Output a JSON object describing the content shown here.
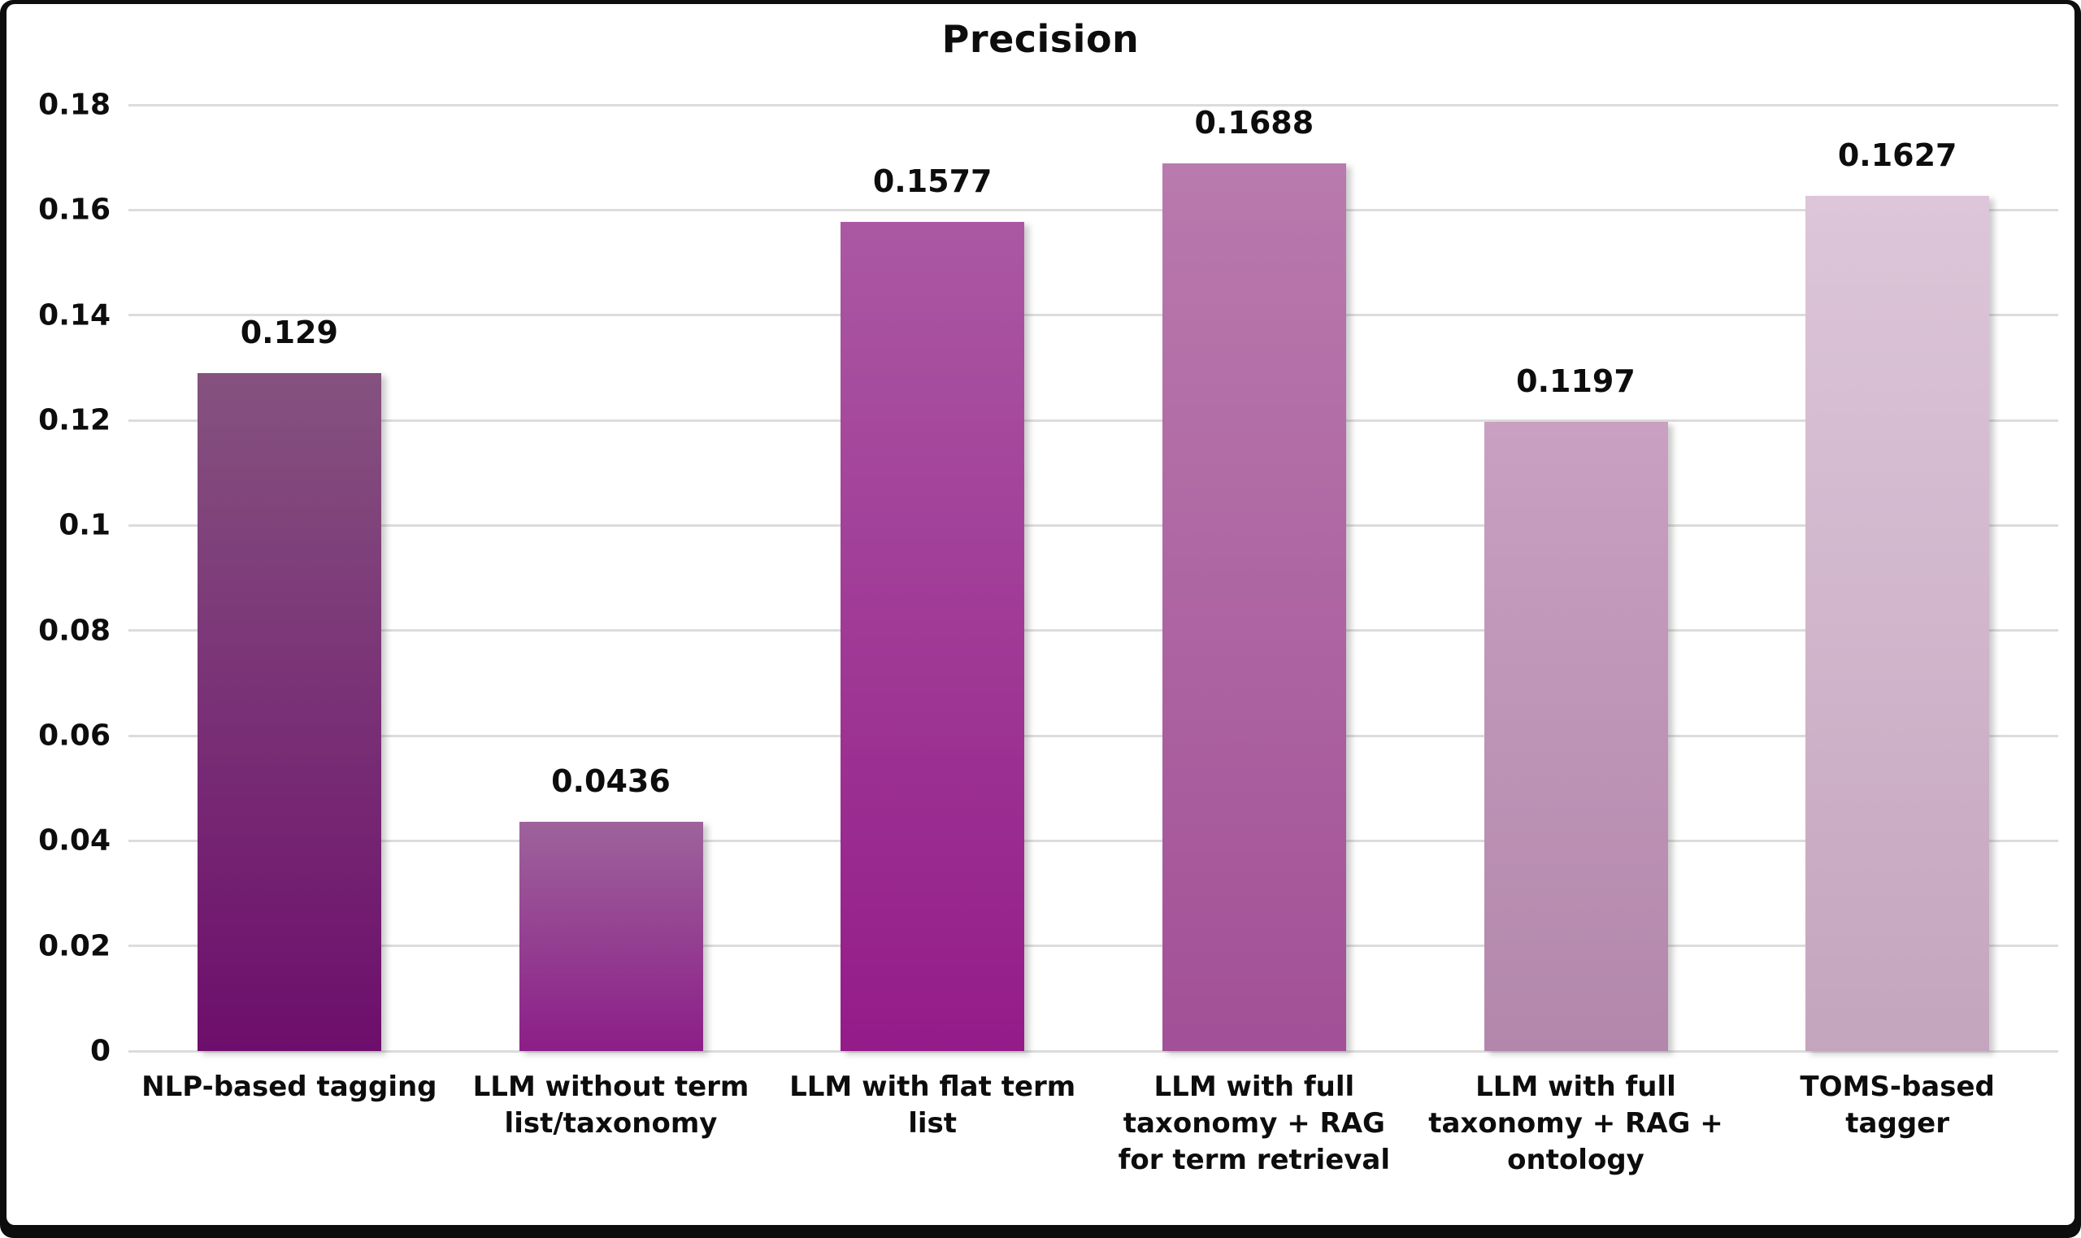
{
  "frame": {
    "border_color": "#0d0d0d",
    "background_color": "#ffffff"
  },
  "chart_data": {
    "type": "bar",
    "title": "Precision",
    "categories": [
      "NLP-based tagging",
      "LLM without term\nlist/taxonomy",
      "LLM with flat term\nlist",
      "LLM with full\ntaxonomy + RAG\nfor term retrieval",
      "LLM with full\ntaxonomy + RAG +\nontology",
      "TOMS-based\ntagger"
    ],
    "values": [
      0.129,
      0.0436,
      0.1577,
      0.1688,
      0.1197,
      0.1627
    ],
    "value_labels": [
      "0.129",
      "0.0436",
      "0.1577",
      "0.1688",
      "0.1197",
      "0.1627"
    ],
    "xlabel": "",
    "ylabel": "",
    "ylim": [
      0,
      0.18
    ],
    "ytick_values": [
      0,
      0.02,
      0.04,
      0.06,
      0.08,
      0.1,
      0.12,
      0.14,
      0.16,
      0.18
    ],
    "ytick_labels": [
      "0",
      "0.02",
      "0.04",
      "0.06",
      "0.08",
      "0.1",
      "0.12",
      "0.14",
      "0.16",
      "0.18"
    ],
    "grid": true,
    "legend": false,
    "colors": {
      "gridline": "#dcdcdc",
      "text": "#0d0d0d",
      "bar_gradients": [
        [
          "#85527f",
          "#6d0e6c"
        ],
        [
          "#9d639b",
          "#8c1e88"
        ],
        [
          "#ab58a3",
          "#941b89"
        ],
        [
          "#b97aad",
          "#a25097"
        ],
        [
          "#c9a0c1",
          "#b287ab"
        ],
        [
          "#ddc6d9",
          "#c4a5be"
        ]
      ]
    }
  }
}
